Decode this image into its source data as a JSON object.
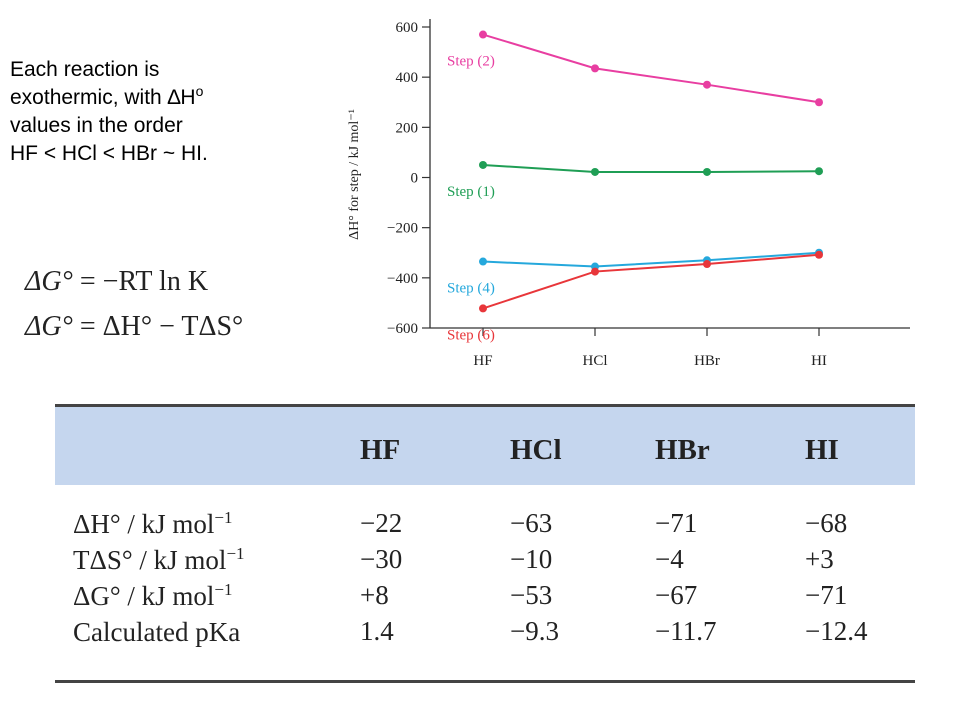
{
  "note": {
    "line1": "Each reaction is",
    "line2_pre": "exothermic, with ",
    "line2_delta": "∆H",
    "line2_sup": "o",
    "line3": "values in the order",
    "line4": "HF < HCl < HBr ~ HI."
  },
  "equations": {
    "eq1": {
      "lhs": "ΔG°",
      "rhs": "= −RT ln K"
    },
    "eq2": {
      "lhs": "ΔG°",
      "rhs": "= ΔH° − TΔS°"
    }
  },
  "chart_data": {
    "type": "line",
    "categories": [
      "HF",
      "HCl",
      "HBr",
      "HI"
    ],
    "ylabel": "ΔH° for step / kJ mol⁻¹",
    "ylim": [
      -600,
      600
    ],
    "yticks": [
      600,
      400,
      200,
      0,
      -200,
      -400,
      -600
    ],
    "ytick_labels": [
      "600",
      "400",
      "200",
      "0",
      "−200",
      "−400",
      "−600"
    ],
    "grid": false,
    "series": [
      {
        "name": "Step (2)",
        "color": "#e83ea1",
        "values": [
          570,
          435,
          370,
          300
        ]
      },
      {
        "name": "Step (1)",
        "color": "#1f9e55",
        "values": [
          50,
          22,
          22,
          25
        ]
      },
      {
        "name": "Step (4)",
        "color": "#25a8dc",
        "values": [
          -335,
          -355,
          -330,
          -300
        ]
      },
      {
        "name": "Step (6)",
        "color": "#e8363a",
        "values": [
          -522,
          -375,
          -345,
          -308
        ]
      }
    ]
  },
  "table": {
    "headers": [
      "HF",
      "HCl",
      "HBr",
      "HI"
    ],
    "rows": [
      {
        "label_pre": "ΔH° / kJ mol",
        "label_sup": "−1",
        "values": [
          "−22",
          "−63",
          "−71",
          "−68"
        ]
      },
      {
        "label_pre": "TΔS° / kJ mol",
        "label_sup": "−1",
        "values": [
          "−30",
          "−10",
          "−4",
          "+3"
        ]
      },
      {
        "label_pre": "ΔG° / kJ mol",
        "label_sup": "−1",
        "values": [
          "+8",
          "−53",
          "−67",
          "−71"
        ]
      },
      {
        "label_pre": "Calculated pKa",
        "label_sup": "",
        "values": [
          "1.4",
          "−9.3",
          "−11.7",
          "−12.4"
        ]
      }
    ]
  }
}
